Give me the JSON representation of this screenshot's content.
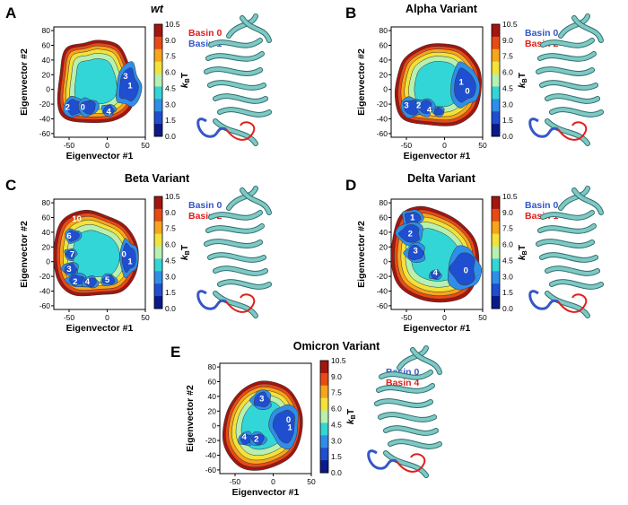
{
  "colors": {
    "levels": [
      "#0a1a8a",
      "#1f4fd0",
      "#2f8ee8",
      "#33d6d6",
      "#b8f0b0",
      "#f2e23a",
      "#f7a51c",
      "#e84a16",
      "#a3150f"
    ],
    "basin_red": "#e0201c",
    "basin_blue": "#3557c8",
    "protein": "#7ec9c6",
    "protein_edge": "#2f6e6b"
  },
  "colorbar": {
    "label": "kBT",
    "ticks": [
      "10.5",
      "9.0",
      "7.5",
      "6.0",
      "4.5",
      "3.0",
      "1.5",
      "0.0"
    ]
  },
  "axes": {
    "x_label": "Eigenvector #1",
    "y_label": "Eigenvector #2",
    "x_ticks": [
      "-50",
      "0",
      "50"
    ],
    "y_ticks": [
      "80",
      "60",
      "40",
      "20",
      "0",
      "-20",
      "-40",
      "-60"
    ]
  },
  "panels": [
    {
      "letter": "A",
      "title": "wt",
      "basins": [
        "3",
        "1",
        "2",
        "0",
        "4"
      ],
      "legend": [
        {
          "text": "Basin 0",
          "color": "red"
        },
        {
          "text": "Basin 1",
          "color": "blue"
        }
      ]
    },
    {
      "letter": "B",
      "title": "Alpha Variant",
      "basins": [
        "1",
        "0",
        "3",
        "2",
        "4"
      ],
      "legend": [
        {
          "text": "Basin 0",
          "color": "blue"
        },
        {
          "text": "Basin 2",
          "color": "red"
        }
      ]
    },
    {
      "letter": "C",
      "title": "Beta Variant",
      "basins": [
        "10",
        "6",
        "7",
        "3",
        "2",
        "4",
        "5",
        "0",
        "1"
      ],
      "legend": [
        {
          "text": "Basin 0",
          "color": "blue"
        },
        {
          "text": "Basin 2",
          "color": "red"
        }
      ]
    },
    {
      "letter": "D",
      "title": "Delta Variant",
      "basins": [
        "1",
        "2",
        "3",
        "4",
        "0"
      ],
      "legend": [
        {
          "text": "Basin 0",
          "color": "blue"
        },
        {
          "text": "Basin 1",
          "color": "red"
        }
      ]
    },
    {
      "letter": "E",
      "title": "Omicron Variant",
      "basins": [
        "3",
        "0",
        "1",
        "4",
        "2"
      ],
      "legend": [
        {
          "text": "Basin 0",
          "color": "blue"
        },
        {
          "text": "Basin 4",
          "color": "red"
        }
      ]
    }
  ]
}
